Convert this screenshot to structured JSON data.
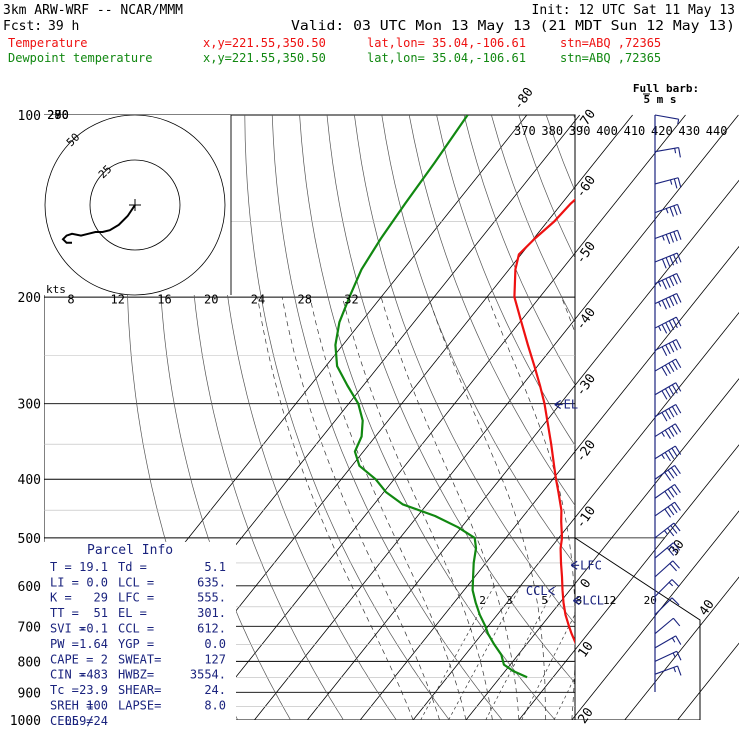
{
  "header": {
    "model": "3km ARW-WRF -- NCAR/MMM",
    "init": "Init: 12 UTC Sat 11 May 13",
    "fcst_label": "Fcst:",
    "fcst_value": "39 h",
    "valid": "Valid: 03 UTC Mon 13 May 13 (21 MDT Sun 12 May 13)",
    "temperature_line": {
      "label": "Temperature",
      "xy": "x,y=221.55,350.50",
      "latlon": "lat,lon= 35.04,-106.61",
      "stn": "stn=ABQ ,72365"
    },
    "dewpoint_line": {
      "label": "Dewpoint temperature",
      "xy": "x,y=221.55,350.50",
      "latlon": "lat,lon= 35.04,-106.61",
      "stn": "stn=ABQ ,72365"
    }
  },
  "colors": {
    "temperature": "#ee1111",
    "dewpoint": "#118811",
    "navy": "#1a237e",
    "frame": "#000000",
    "isobar": "#000000",
    "dry_adiabat": "#444444",
    "moist_adiabat": "#333333",
    "mixing_ratio": "#333333",
    "grid": "#bbbbbb"
  },
  "chart_data": {
    "type": "line",
    "title": "",
    "y_axis": {
      "scale": "log",
      "unit": "hPa",
      "ylim": [
        1000,
        100
      ],
      "pressure_ticks": [
        100,
        200,
        300,
        400,
        500,
        600,
        700,
        800,
        900,
        1000
      ],
      "pressure_tick_labels": [
        "100",
        "200",
        "300",
        "400",
        "500",
        "600",
        "700",
        "800",
        "900",
        "1000"
      ]
    },
    "isotherm_labels": [
      "-80",
      "-70",
      "-60",
      "-50",
      "-40",
      "-30",
      "-20",
      "-10",
      "0",
      "10",
      "20",
      "30",
      "40"
    ],
    "theta_labels_top": [
      "370",
      "380",
      "390",
      "400",
      "410",
      "420",
      "430",
      "440"
    ],
    "theta_labels_left": [
      "290",
      "280",
      "270"
    ],
    "wind_speed_row_labels": [
      "8",
      "12",
      "16",
      "20",
      "24",
      "28",
      "32"
    ],
    "mixing_ratio_labels": [
      "2",
      "3",
      "5",
      "8",
      "12",
      "20"
    ],
    "series": [
      {
        "name": "Temperature",
        "color_key": "temperature",
        "unit": "degC",
        "points": [
          {
            "p": 850,
            "t": 19.1
          },
          {
            "p": 830,
            "t": 17.8
          },
          {
            "p": 810,
            "t": 15.6
          },
          {
            "p": 780,
            "t": 12.4
          },
          {
            "p": 750,
            "t": 9.4
          },
          {
            "p": 720,
            "t": 6.9
          },
          {
            "p": 700,
            "t": 5.3
          },
          {
            "p": 670,
            "t": 2.9
          },
          {
            "p": 640,
            "t": 0.7
          },
          {
            "p": 610,
            "t": -1.4
          },
          {
            "p": 580,
            "t": -3.5
          },
          {
            "p": 550,
            "t": -5.8
          },
          {
            "p": 520,
            "t": -8.1
          },
          {
            "p": 500,
            "t": -9.4
          },
          {
            "p": 470,
            "t": -12.0
          },
          {
            "p": 450,
            "t": -13.7
          },
          {
            "p": 420,
            "t": -17.0
          },
          {
            "p": 400,
            "t": -19.4
          },
          {
            "p": 380,
            "t": -21.8
          },
          {
            "p": 350,
            "t": -25.6
          },
          {
            "p": 320,
            "t": -29.9
          },
          {
            "p": 300,
            "t": -33.0
          },
          {
            "p": 280,
            "t": -36.6
          },
          {
            "p": 260,
            "t": -40.6
          },
          {
            "p": 240,
            "t": -45.0
          },
          {
            "p": 220,
            "t": -49.7
          },
          {
            "p": 200,
            "t": -54.8
          },
          {
            "p": 180,
            "t": -58.8
          },
          {
            "p": 170,
            "t": -60.4
          },
          {
            "p": 160,
            "t": -59.8
          },
          {
            "p": 150,
            "t": -58.7
          },
          {
            "p": 140,
            "t": -58.3
          },
          {
            "p": 130,
            "t": -57.1
          },
          {
            "p": 120,
            "t": -57.2
          },
          {
            "p": 110,
            "t": -58.1
          },
          {
            "p": 100,
            "t": -59.0
          }
        ]
      },
      {
        "name": "Dewpoint temperature",
        "color_key": "dewpoint",
        "unit": "degC",
        "points": [
          {
            "p": 850,
            "t": 5.1
          },
          {
            "p": 830,
            "t": 1.5
          },
          {
            "p": 810,
            "t": -1.2
          },
          {
            "p": 780,
            "t": -3.2
          },
          {
            "p": 750,
            "t": -6.1
          },
          {
            "p": 720,
            "t": -8.9
          },
          {
            "p": 700,
            "t": -10.5
          },
          {
            "p": 670,
            "t": -13.3
          },
          {
            "p": 640,
            "t": -15.9
          },
          {
            "p": 610,
            "t": -18.4
          },
          {
            "p": 580,
            "t": -20.3
          },
          {
            "p": 550,
            "t": -22.3
          },
          {
            "p": 520,
            "t": -24.1
          },
          {
            "p": 500,
            "t": -25.9
          },
          {
            "p": 480,
            "t": -30.7
          },
          {
            "p": 460,
            "t": -36.7
          },
          {
            "p": 440,
            "t": -44.6
          },
          {
            "p": 420,
            "t": -49.6
          },
          {
            "p": 400,
            "t": -53.5
          },
          {
            "p": 380,
            "t": -58.6
          },
          {
            "p": 360,
            "t": -61.6
          },
          {
            "p": 340,
            "t": -62.6
          },
          {
            "p": 320,
            "t": -64.8
          },
          {
            "p": 300,
            "t": -68.2
          },
          {
            "p": 280,
            "t": -73.0
          },
          {
            "p": 260,
            "t": -77.9
          },
          {
            "p": 240,
            "t": -81.4
          },
          {
            "p": 220,
            "t": -84.1
          },
          {
            "p": 200,
            "t": -86.0
          },
          {
            "p": 180,
            "t": -87.9
          },
          {
            "p": 160,
            "t": -88.9
          },
          {
            "p": 140,
            "t": -89.6
          },
          {
            "p": 120,
            "t": -90.2
          },
          {
            "p": 100,
            "t": -91.2
          }
        ]
      }
    ],
    "levels": [
      {
        "label": "EL",
        "p": 301
      },
      {
        "label": "LFC",
        "p": 555
      },
      {
        "label": "LCL",
        "p": 635
      },
      {
        "label": "CCL",
        "p": 612
      }
    ],
    "parcel_info": {
      "title": "Parcel Info",
      "rows": [
        {
          "k1": "T  =",
          "v1": "19.1",
          "k2": "Td =",
          "v2": "5.1"
        },
        {
          "k1": "LI =",
          "v1": "0.0",
          "k2": "LCL =",
          "v2": "635."
        },
        {
          "k1": "K  =",
          "v1": "29",
          "k2": "LFC =",
          "v2": "555."
        },
        {
          "k1": "TT =",
          "v1": "51",
          "k2": "EL =",
          "v2": "301."
        },
        {
          "k1": "SVI =",
          "v1": "-0.1",
          "k2": "CCL =",
          "v2": "612."
        },
        {
          "k1": "PW =",
          "v1": "1.64",
          "k2": "YGP =",
          "v2": "0.0"
        },
        {
          "k1": "CAPE =",
          "v1": "2",
          "k2": "SWEAT=",
          "v2": "127"
        },
        {
          "k1": "CIN =",
          "v1": "-483",
          "k2": "HWBZ=",
          "v2": "3554."
        },
        {
          "k1": "Tc =",
          "v1": "23.9",
          "k2": "SHEAR=",
          "v2": "24."
        },
        {
          "k1": "SREH =",
          "v1": "100",
          "k2": "LAPSE=",
          "v2": "8.0"
        },
        {
          "k1": "CELL =",
          "v1": "059/24",
          "k2": "",
          "v2": ""
        }
      ]
    },
    "hodograph": {
      "unit_label": "kts",
      "ring_labels": [
        "50",
        "25"
      ],
      "ring_speeds": [
        25,
        50
      ],
      "trace_uv": [
        [
          0,
          0
        ],
        [
          -4,
          -6
        ],
        [
          -9,
          -11
        ],
        [
          -14,
          -14
        ],
        [
          -18,
          -15
        ],
        [
          -22,
          -15
        ],
        [
          -26,
          -16
        ],
        [
          -30,
          -17
        ],
        [
          -35,
          -16
        ],
        [
          -38,
          -17
        ],
        [
          -40,
          -19
        ],
        [
          -38,
          -21
        ],
        [
          -35,
          -21
        ]
      ]
    },
    "wind_barbs": {
      "title": "Full barb:",
      "subtitle": "5 m s",
      "barbs": [
        {
          "p": 100,
          "speed_ms": 3,
          "dir": 280
        },
        {
          "p": 115,
          "speed_ms": 8,
          "dir": 260
        },
        {
          "p": 130,
          "speed_ms": 13,
          "dir": 255
        },
        {
          "p": 145,
          "speed_ms": 18,
          "dir": 250
        },
        {
          "p": 160,
          "speed_ms": 22,
          "dir": 250
        },
        {
          "p": 175,
          "speed_ms": 25,
          "dir": 248
        },
        {
          "p": 190,
          "speed_ms": 27,
          "dir": 245
        },
        {
          "p": 205,
          "speed_ms": 28,
          "dir": 245
        },
        {
          "p": 225,
          "speed_ms": 27,
          "dir": 243
        },
        {
          "p": 245,
          "speed_ms": 26,
          "dir": 243
        },
        {
          "p": 265,
          "speed_ms": 25,
          "dir": 240
        },
        {
          "p": 290,
          "speed_ms": 25,
          "dir": 240
        },
        {
          "p": 315,
          "speed_ms": 24,
          "dir": 240
        },
        {
          "p": 340,
          "speed_ms": 23,
          "dir": 238
        },
        {
          "p": 370,
          "speed_ms": 22,
          "dir": 238
        },
        {
          "p": 400,
          "speed_ms": 21,
          "dir": 235
        },
        {
          "p": 430,
          "speed_ms": 20,
          "dir": 235
        },
        {
          "p": 460,
          "speed_ms": 19,
          "dir": 235
        },
        {
          "p": 500,
          "speed_ms": 17,
          "dir": 232
        },
        {
          "p": 540,
          "speed_ms": 14,
          "dir": 230
        },
        {
          "p": 580,
          "speed_ms": 11,
          "dir": 228
        },
        {
          "p": 625,
          "speed_ms": 8,
          "dir": 225
        },
        {
          "p": 670,
          "speed_ms": 6,
          "dir": 225
        },
        {
          "p": 720,
          "speed_ms": 6,
          "dir": 230
        },
        {
          "p": 760,
          "speed_ms": 7,
          "dir": 240
        },
        {
          "p": 800,
          "speed_ms": 7,
          "dir": 245
        },
        {
          "p": 840,
          "speed_ms": 7,
          "dir": 250
        }
      ]
    }
  }
}
